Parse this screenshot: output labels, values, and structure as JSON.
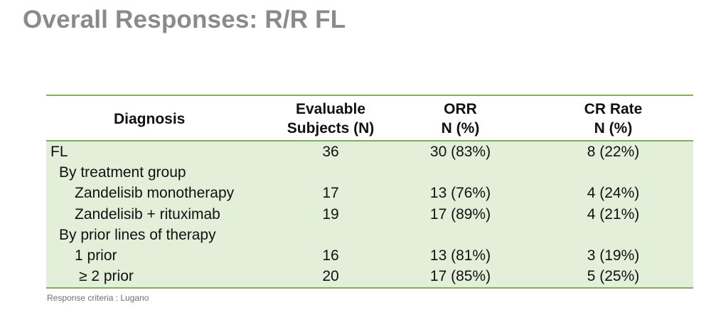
{
  "title": "Overall Responses: R/R FL",
  "table": {
    "headers": {
      "diagnosis": "Diagnosis",
      "subjects_line1": "Evaluable",
      "subjects_line2": "Subjects (N)",
      "orr_line1": "ORR",
      "orr_line2": "N (%)",
      "cr_line1": "CR Rate",
      "cr_line2": "N (%)"
    },
    "rows": [
      {
        "label": "FL",
        "n": "36",
        "orr": "30 (83%)",
        "cr": "8 (22%)"
      },
      {
        "label": "By treatment group",
        "n": "",
        "orr": "",
        "cr": ""
      },
      {
        "label": "Zandelisib monotherapy",
        "n": "17",
        "orr": "13 (76%)",
        "cr": "4 (24%)"
      },
      {
        "label": "Zandelisib + rituximab",
        "n": "19",
        "orr": "17 (89%)",
        "cr": "4 (21%)"
      },
      {
        "label": "By prior lines of therapy",
        "n": "",
        "orr": "",
        "cr": ""
      },
      {
        "label": "1 prior",
        "n": "16",
        "orr": "13 (81%)",
        "cr": "3 (19%)"
      },
      {
        "label": "≥ 2 prior",
        "n": "20",
        "orr": "17 (85%)",
        "cr": "5 (25%)"
      }
    ]
  },
  "footnote": "Response criteria : Lugano",
  "colors": {
    "title": "#8a8a8a",
    "rule": "#7fae5c",
    "row_fill": "#e3efd9",
    "footnote": "#6f6f6f"
  }
}
